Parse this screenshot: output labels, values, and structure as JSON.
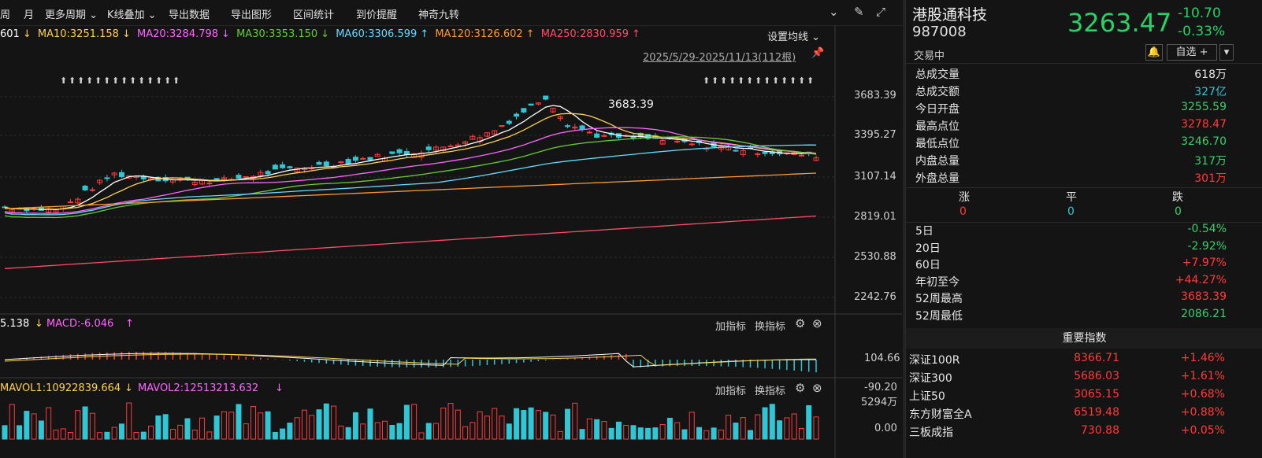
{
  "toolbar": {
    "items": [
      "周",
      "月",
      "更多周期 ⌄",
      "K线叠加 ⌄",
      "导出数据",
      "导出图形",
      "区间统计",
      "到价提醒",
      "神奇九转"
    ],
    "icons": [
      "chevron-circle-icon",
      "brush-icon",
      "expand-icon"
    ]
  },
  "ma_line": {
    "ma5": "601",
    "ma10": "MA10:3251.158",
    "ma20": "MA20:3284.798",
    "ma30": "MA30:3353.150",
    "ma60": "MA60:3306.599",
    "ma120": "MA120:3126.602",
    "ma250": "MA250:2830.959",
    "settings": "设置均线 ⌄",
    "colors": {
      "ma5": "#ffffff",
      "ma10": "#ffd24d",
      "ma20": "#ff66ff",
      "ma30": "#66cc33",
      "ma60": "#66d9ff",
      "ma120": "#ff9933",
      "ma250": "#ff4d66"
    }
  },
  "range_label": "2025/5/29-2025/11/13(112根)",
  "price_axis": [
    "3683.39",
    "3395.27",
    "3107.14",
    "2819.01",
    "2530.88",
    "2242.76"
  ],
  "peak_label": "3683.39",
  "macd": {
    "left": "5.138",
    "label": "MACD:-6.046",
    "axis_top": "104.66",
    "axis_bottom": "-90.20",
    "add": "加指标",
    "switch": "换指标"
  },
  "vol": {
    "label1": "MAVOL1:10922839.664",
    "label2": "MAVOL2:12513213.632",
    "axis_top": "5294万",
    "axis_bottom": "0.00",
    "add": "加指标",
    "switch": "换指标"
  },
  "stock": {
    "name": "港股通科技",
    "code": "987008",
    "price": "3263.47",
    "change": "-10.70",
    "change_pct": "-0.33%",
    "status": "交易中",
    "watch": "自选 +"
  },
  "stats": [
    {
      "k": "总成交量",
      "v": "618万",
      "c": "white"
    },
    {
      "k": "总成交额",
      "v": "327亿",
      "c": "cyan"
    },
    {
      "k": "今日开盘",
      "v": "3255.59",
      "c": "green"
    },
    {
      "k": "最高点位",
      "v": "3278.47",
      "c": "red"
    },
    {
      "k": "最低点位",
      "v": "3246.70",
      "c": "green"
    },
    {
      "k": "内盘总量",
      "v": "317万",
      "c": "green"
    },
    {
      "k": "外盘总量",
      "v": "301万",
      "c": "red"
    }
  ],
  "breadth": {
    "up_label": "涨",
    "flat_label": "平",
    "down_label": "跌",
    "up": "0",
    "flat": "0",
    "down": "0"
  },
  "perf": [
    {
      "k": "5日",
      "v": "-0.54%",
      "c": "green"
    },
    {
      "k": "20日",
      "v": "-2.92%",
      "c": "green"
    },
    {
      "k": "60日",
      "v": "+7.97%",
      "c": "red"
    },
    {
      "k": "年初至今",
      "v": "+44.27%",
      "c": "red"
    },
    {
      "k": "52周最高",
      "v": "3683.39",
      "c": "red"
    },
    {
      "k": "52周最低",
      "v": "2086.21",
      "c": "green"
    }
  ],
  "indices_title": "重要指数",
  "indices": [
    {
      "name": "深证100R",
      "value": "8366.71",
      "pct": "+1.46%"
    },
    {
      "name": "深证300",
      "value": "5686.03",
      "pct": "+1.61%"
    },
    {
      "name": "上证50",
      "value": "3065.15",
      "pct": "+0.68%"
    },
    {
      "name": "东方财富全A",
      "value": "6519.48",
      "pct": "+0.88%"
    },
    {
      "name": "三板成指",
      "value": "730.88",
      "pct": "+0.05%"
    }
  ]
}
